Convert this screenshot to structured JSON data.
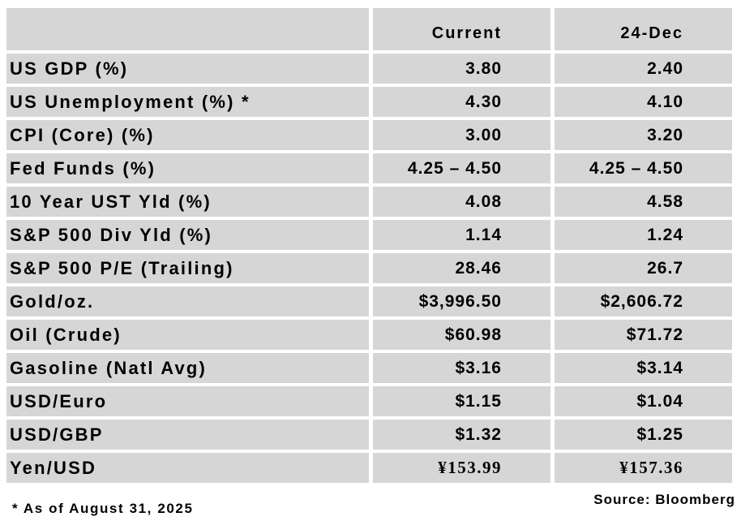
{
  "chart_data": {
    "type": "table",
    "columns": [
      "Current",
      "24-Dec"
    ],
    "rows": [
      [
        "US GDP (%)",
        "3.80",
        "2.40"
      ],
      [
        "US Unemployment (%) *",
        "4.30",
        "4.10"
      ],
      [
        "CPI (Core) (%)",
        "3.00",
        "3.20"
      ],
      [
        "Fed Funds (%)",
        "4.25 – 4.50",
        "4.25 – 4.50"
      ],
      [
        "10 Year UST Yld (%)",
        "4.08",
        "4.58"
      ],
      [
        "S&P 500 Div Yld (%)",
        "1.14",
        "1.24"
      ],
      [
        "S&P 500 P/E (Trailing)",
        "28.46",
        "26.7"
      ],
      [
        "Gold/oz.",
        "$3,996.50",
        "$2,606.72"
      ],
      [
        "Oil (Crude)",
        "$60.98",
        "$71.72"
      ],
      [
        "Gasoline (Natl Avg)",
        "$3.16",
        "$3.14"
      ],
      [
        "USD/Euro",
        "$1.15",
        "$1.04"
      ],
      [
        "USD/GBP",
        "$1.32",
        "$1.25"
      ],
      [
        "Yen/USD",
        "¥153.99",
        "¥157.36"
      ]
    ],
    "footnote": "* As of August 31, 2025",
    "source": "Source: Bloomberg"
  },
  "colors": {
    "cell_fill": "#d6d6d6",
    "text": "#000000",
    "background": "#ffffff"
  }
}
